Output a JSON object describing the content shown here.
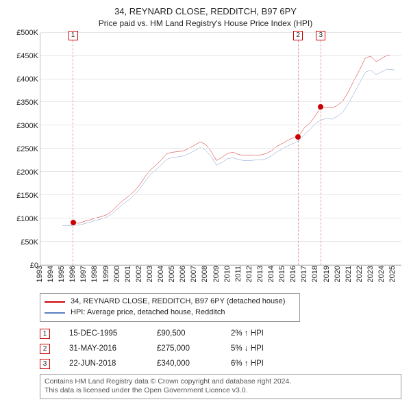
{
  "title": {
    "line1": "34, REYNARD CLOSE, REDDITCH, B97 6PY",
    "line2": "Price paid vs. HM Land Registry's House Price Index (HPI)"
  },
  "chart": {
    "type": "line",
    "background_color": "#ffffff",
    "grid_color": "#e6e6e6",
    "axis_color": "#bbbbbb",
    "label_fontsize": 11,
    "x": {
      "min": 1993,
      "max": 2025.8,
      "tick_step": 1,
      "ticks_labeled_from": 1993,
      "ticks_labeled_to": 2025
    },
    "y": {
      "min": 0,
      "max": 500000,
      "tick_step": 50000,
      "prefix": "£",
      "format_k": true
    },
    "series": [
      {
        "key": "price_paid",
        "label": "34, REYNARD CLOSE, REDDITCH, B97 6PY (detached house)",
        "color": "#cc0000",
        "line_width": 1.6,
        "data": [
          [
            1995.96,
            90500
          ],
          [
            1996.5,
            90000
          ],
          [
            1997.0,
            94000
          ],
          [
            1997.5,
            97000
          ],
          [
            1998.0,
            101000
          ],
          [
            1998.5,
            104000
          ],
          [
            1999.0,
            108000
          ],
          [
            1999.5,
            116000
          ],
          [
            2000.0,
            128000
          ],
          [
            2000.5,
            139000
          ],
          [
            2001.0,
            148000
          ],
          [
            2001.5,
            158000
          ],
          [
            2002.0,
            172000
          ],
          [
            2002.5,
            190000
          ],
          [
            2003.0,
            205000
          ],
          [
            2003.5,
            215000
          ],
          [
            2004.0,
            227000
          ],
          [
            2004.5,
            240000
          ],
          [
            2005.0,
            243000
          ],
          [
            2005.5,
            244000
          ],
          [
            2006.0,
            246000
          ],
          [
            2006.5,
            251000
          ],
          [
            2007.0,
            258000
          ],
          [
            2007.5,
            265000
          ],
          [
            2008.0,
            260000
          ],
          [
            2008.5,
            245000
          ],
          [
            2009.0,
            225000
          ],
          [
            2009.5,
            232000
          ],
          [
            2010.0,
            240000
          ],
          [
            2010.5,
            243000
          ],
          [
            2011.0,
            238000
          ],
          [
            2011.5,
            236000
          ],
          [
            2012.0,
            236000
          ],
          [
            2012.5,
            237000
          ],
          [
            2013.0,
            237000
          ],
          [
            2013.5,
            240000
          ],
          [
            2014.0,
            246000
          ],
          [
            2014.5,
            256000
          ],
          [
            2015.0,
            262000
          ],
          [
            2015.5,
            269000
          ],
          [
            2016.0,
            274000
          ],
          [
            2016.41,
            275000
          ],
          [
            2017.0,
            296000
          ],
          [
            2017.5,
            306000
          ],
          [
            2018.0,
            322000
          ],
          [
            2018.47,
            340000
          ],
          [
            2019.0,
            340000
          ],
          [
            2019.5,
            338000
          ],
          [
            2020.0,
            344000
          ],
          [
            2020.5,
            354000
          ],
          [
            2021.0,
            374000
          ],
          [
            2021.5,
            398000
          ],
          [
            2022.0,
            420000
          ],
          [
            2022.5,
            445000
          ],
          [
            2023.0,
            450000
          ],
          [
            2023.5,
            438000
          ],
          [
            2024.0,
            445000
          ],
          [
            2024.5,
            452000
          ],
          [
            2025.2,
            450000
          ]
        ]
      },
      {
        "key": "hpi",
        "label": "HPI: Average price, detached house, Redditch",
        "color": "#5a7fc2",
        "line_width": 1.4,
        "data": [
          [
            1995.0,
            85000
          ],
          [
            1995.5,
            85000
          ],
          [
            1996.0,
            85500
          ],
          [
            1996.5,
            86000
          ],
          [
            1997.0,
            89000
          ],
          [
            1997.5,
            92000
          ],
          [
            1998.0,
            96000
          ],
          [
            1998.5,
            99000
          ],
          [
            1999.0,
            103000
          ],
          [
            1999.5,
            110000
          ],
          [
            2000.0,
            121000
          ],
          [
            2000.5,
            131000
          ],
          [
            2001.0,
            140000
          ],
          [
            2001.5,
            150000
          ],
          [
            2002.0,
            163000
          ],
          [
            2002.5,
            180000
          ],
          [
            2003.0,
            195000
          ],
          [
            2003.5,
            205000
          ],
          [
            2004.0,
            216000
          ],
          [
            2004.5,
            228000
          ],
          [
            2005.0,
            232000
          ],
          [
            2005.5,
            233000
          ],
          [
            2006.0,
            235000
          ],
          [
            2006.5,
            240000
          ],
          [
            2007.0,
            246000
          ],
          [
            2007.5,
            253000
          ],
          [
            2008.0,
            248000
          ],
          [
            2008.5,
            234000
          ],
          [
            2009.0,
            215000
          ],
          [
            2009.5,
            221000
          ],
          [
            2010.0,
            229000
          ],
          [
            2010.5,
            231000
          ],
          [
            2011.0,
            227000
          ],
          [
            2011.5,
            225000
          ],
          [
            2012.0,
            225000
          ],
          [
            2012.5,
            226000
          ],
          [
            2013.0,
            226000
          ],
          [
            2013.5,
            229000
          ],
          [
            2014.0,
            235000
          ],
          [
            2014.5,
            244000
          ],
          [
            2015.0,
            250000
          ],
          [
            2015.5,
            257000
          ],
          [
            2016.0,
            262000
          ],
          [
            2016.5,
            268000
          ],
          [
            2017.0,
            281000
          ],
          [
            2017.5,
            292000
          ],
          [
            2018.0,
            305000
          ],
          [
            2018.5,
            312000
          ],
          [
            2019.0,
            316000
          ],
          [
            2019.5,
            314000
          ],
          [
            2020.0,
            320000
          ],
          [
            2020.5,
            330000
          ],
          [
            2021.0,
            348000
          ],
          [
            2021.5,
            370000
          ],
          [
            2022.0,
            392000
          ],
          [
            2022.5,
            415000
          ],
          [
            2023.0,
            420000
          ],
          [
            2023.5,
            410000
          ],
          [
            2024.0,
            416000
          ],
          [
            2024.5,
            422000
          ],
          [
            2025.2,
            420000
          ]
        ]
      }
    ],
    "events": [
      {
        "n": "1",
        "year": 1995.96,
        "price": 90500
      },
      {
        "n": "2",
        "year": 2016.41,
        "price": 275000
      },
      {
        "n": "3",
        "year": 2018.47,
        "price": 340000
      }
    ],
    "marker_color": "#cc0000",
    "flag_border_color": "#cc0000",
    "flag_line_color": "#e08a8a"
  },
  "legend": {
    "rows": [
      {
        "color": "#cc0000",
        "label": "34, REYNARD CLOSE, REDDITCH, B97 6PY (detached house)"
      },
      {
        "color": "#5a7fc2",
        "label": "HPI: Average price, detached house, Redditch"
      }
    ]
  },
  "events_table": {
    "rows": [
      {
        "n": "1",
        "date": "15-DEC-1995",
        "price": "£90,500",
        "delta": "2% ↑ HPI"
      },
      {
        "n": "2",
        "date": "31-MAY-2016",
        "price": "£275,000",
        "delta": "5% ↓ HPI"
      },
      {
        "n": "3",
        "date": "22-JUN-2018",
        "price": "£340,000",
        "delta": "6% ↑ HPI"
      }
    ]
  },
  "footer": {
    "line1": "Contains HM Land Registry data © Crown copyright and database right 2024.",
    "line2": "This data is licensed under the Open Government Licence v3.0."
  }
}
